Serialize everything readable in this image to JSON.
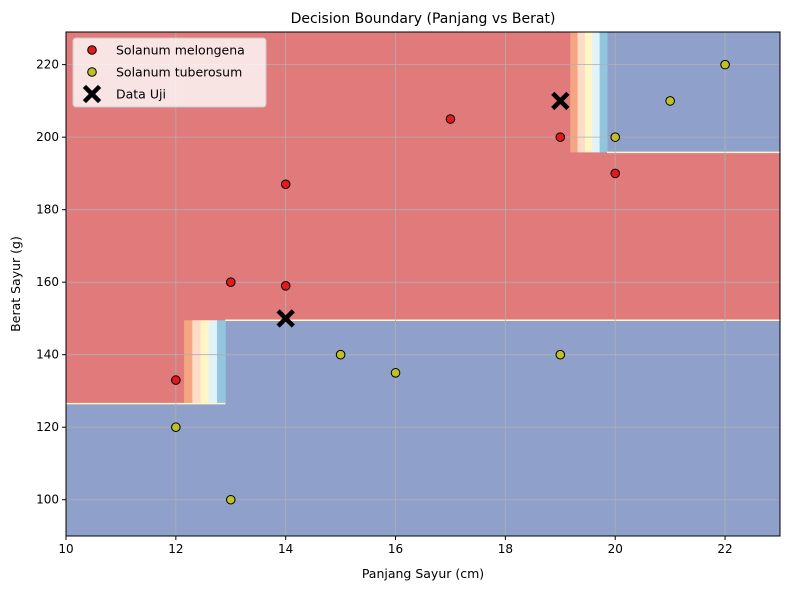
{
  "chart_data": {
    "type": "scatter",
    "title": "Decision Boundary (Panjang vs Berat)",
    "xlabel": "Panjang Sayur (cm)",
    "ylabel": "Berat Sayur (g)",
    "xlim": [
      10,
      23
    ],
    "ylim": [
      90,
      229
    ],
    "xticks": [
      10,
      12,
      14,
      16,
      18,
      20,
      22
    ],
    "yticks": [
      100,
      120,
      140,
      160,
      180,
      200,
      220
    ],
    "grid": true,
    "legend_position": "top-left",
    "colors": {
      "region_melongena": "#e07a7b",
      "region_tuberosum": "#8fa1cb",
      "point_melongena": "#e31a1c",
      "point_tuberosum": "#bfbf26",
      "test": "#000000",
      "transition": [
        "#f4a582",
        "#fddbc7",
        "#fff6c8",
        "#e0f3f8",
        "#92c5de"
      ]
    },
    "regions": {
      "boundary_low_x": 12.9,
      "boundary_y_left": 126.5,
      "boundary_y_mid": 149.5,
      "boundary_y_upper": 195.8,
      "boundary_upper_x": 19.2
    },
    "series": [
      {
        "name": "Solanum melongena",
        "x": [
          12,
          13,
          14,
          14,
          17,
          19,
          20
        ],
        "y": [
          133,
          160,
          187,
          159,
          205,
          200,
          190
        ]
      },
      {
        "name": "Solanum tuberosum",
        "x": [
          12,
          13,
          15,
          16,
          19,
          20,
          21,
          22
        ],
        "y": [
          120,
          100,
          140,
          135,
          140,
          200,
          210,
          220
        ]
      },
      {
        "name": "Data Uji",
        "x": [
          14,
          19
        ],
        "y": [
          150,
          210
        ]
      }
    ]
  }
}
